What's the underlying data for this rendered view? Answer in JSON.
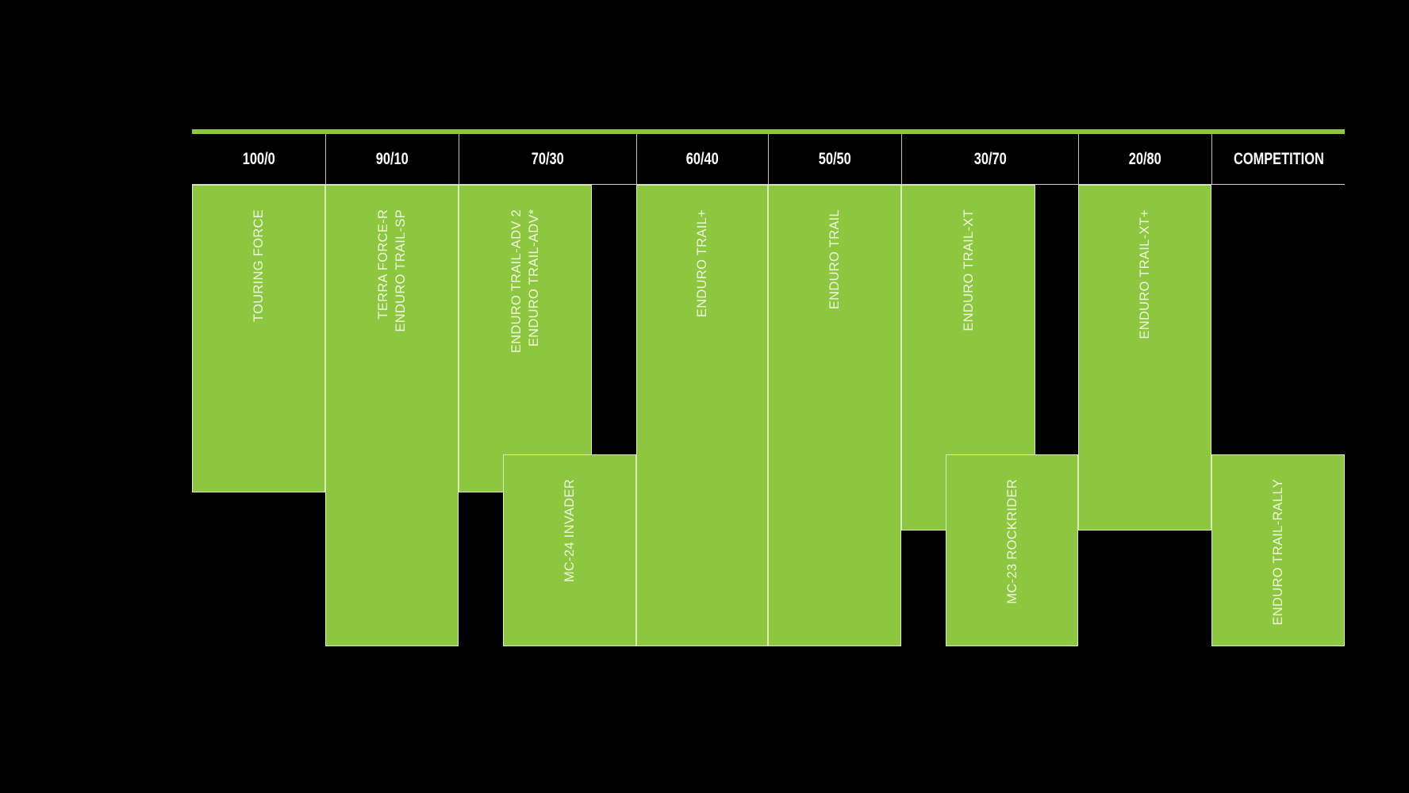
{
  "colors": {
    "background": "#000000",
    "accent_green": "#8dc63f",
    "text": "#ffffff"
  },
  "columns": [
    {
      "label": "100/0"
    },
    {
      "label": "90/10"
    },
    {
      "label": "70/30"
    },
    {
      "label": "60/40"
    },
    {
      "label": "50/50"
    },
    {
      "label": "30/70"
    },
    {
      "label": "20/80"
    },
    {
      "label": "COMPETITION"
    }
  ],
  "products": [
    {
      "column": "100/0",
      "lines": [
        "TOURING FORCE"
      ]
    },
    {
      "column": "90/10",
      "lines": [
        "TERRA FORCE-R",
        "ENDURO TRAIL-SP"
      ]
    },
    {
      "column": "70/30",
      "lines": [
        "ENDURO TRAIL-ADV 2",
        "ENDURO TRAIL-ADV*"
      ]
    },
    {
      "column": "70/30",
      "lines": [
        "MC-24 INVADER"
      ]
    },
    {
      "column": "60/40",
      "lines": [
        "ENDURO TRAIL+"
      ]
    },
    {
      "column": "50/50",
      "lines": [
        "ENDURO TRAIL"
      ]
    },
    {
      "column": "30/70",
      "lines": [
        "ENDURO TRAIL-XT"
      ]
    },
    {
      "column": "30/70",
      "lines": [
        "MC-23 ROCKRIDER"
      ]
    },
    {
      "column": "20/80",
      "lines": [
        "ENDURO TRAIL-XT+"
      ]
    },
    {
      "column": "COMPETITION",
      "lines": [
        "ENDURO TRAIL-RALLY"
      ]
    }
  ]
}
